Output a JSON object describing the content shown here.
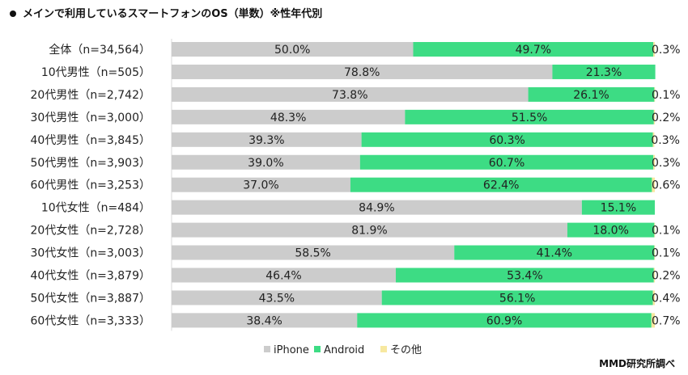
{
  "title": "メインで利用しているスマートフォンのOS（単数）※性年代別",
  "source": "MMD研究所調べ",
  "colors": {
    "iphone": "#cccccc",
    "android": "#3ddc84",
    "other": "#f7e8a0"
  },
  "chart_data": {
    "type": "bar",
    "orientation": "horizontal",
    "stacked": true,
    "percent": true,
    "categories": [
      "全体（n=34,564）",
      "10代男性（n=505）",
      "20代男性（n=2,742）",
      "30代男性（n=3,000）",
      "40代男性（n=3,845）",
      "50代男性（n=3,903）",
      "60代男性（n=3,253）",
      "10代女性（n=484）",
      "20代女性（n=2,728）",
      "30代女性（n=3,003）",
      "40代女性（n=3,879）",
      "50代女性（n=3,887）",
      "60代女性（n=3,333）"
    ],
    "series": [
      {
        "name": "iPhone",
        "values": [
          50.0,
          78.8,
          73.8,
          48.3,
          39.3,
          39.0,
          37.0,
          84.9,
          81.9,
          58.5,
          46.4,
          43.5,
          38.4
        ],
        "labels": [
          "50.0%",
          "78.8%",
          "73.8%",
          "48.3%",
          "39.3%",
          "39.0%",
          "37.0%",
          "84.9%",
          "81.9%",
          "58.5%",
          "46.4%",
          "43.5%",
          "38.4%"
        ]
      },
      {
        "name": "Android",
        "values": [
          49.7,
          21.3,
          26.1,
          51.5,
          60.3,
          60.7,
          62.4,
          15.1,
          18.0,
          41.4,
          53.4,
          56.1,
          60.9
        ],
        "labels": [
          "49.7%",
          "21.3%",
          "26.1%",
          "51.5%",
          "60.3%",
          "60.7%",
          "62.4%",
          "15.1%",
          "18.0%",
          "41.4%",
          "53.4%",
          "56.1%",
          "60.9%"
        ]
      },
      {
        "name": "その他",
        "values": [
          0.3,
          0,
          0.1,
          0.2,
          0.3,
          0.3,
          0.6,
          0,
          0.1,
          0.1,
          0.2,
          0.4,
          0.7
        ],
        "labels": [
          "0.3%",
          "",
          "0.1%",
          "0.2%",
          "0.3%",
          "0.3%",
          "0.6%",
          "",
          "0.1%",
          "0.1%",
          "0.2%",
          "0.4%",
          "0.7%"
        ]
      }
    ],
    "xlim": [
      0,
      100
    ],
    "legend_position": "bottom-center"
  }
}
